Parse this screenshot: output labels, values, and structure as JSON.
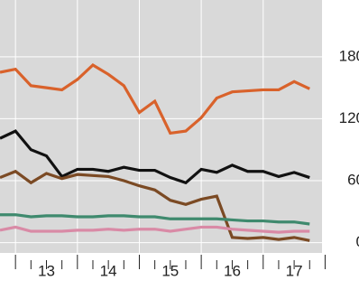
{
  "chart_data": {
    "type": "line",
    "x": [
      2012.75,
      2013,
      2013.25,
      2013.5,
      2013.75,
      2014,
      2014.25,
      2014.5,
      2014.75,
      2015,
      2015.25,
      2015.5,
      2015.75,
      2016,
      2016.25,
      2016.5,
      2016.75,
      2017,
      2017.25,
      2017.5,
      2017.75
    ],
    "series": [
      {
        "color": "#d9622b",
        "values": [
          165,
          168,
          152,
          150,
          148,
          158,
          172,
          163,
          152,
          126,
          137,
          106,
          108,
          121,
          140,
          146,
          147,
          148,
          148,
          156,
          149
        ]
      },
      {
        "color": "#111111",
        "values": [
          101,
          108,
          90,
          84,
          64,
          71,
          71,
          69,
          73,
          70,
          70,
          63,
          58,
          71,
          68,
          75,
          69,
          69,
          64,
          68,
          63
        ]
      },
      {
        "color": "#7b4a24",
        "values": [
          63,
          69,
          58,
          67,
          62,
          66,
          65,
          64,
          60,
          55,
          51,
          41,
          37,
          42,
          45,
          5,
          4,
          5,
          3,
          5,
          2
        ]
      },
      {
        "color": "#3f8a6e",
        "values": [
          27,
          27,
          25,
          26,
          26,
          25,
          25,
          26,
          26,
          25,
          25,
          23,
          23,
          23,
          23,
          22,
          21,
          21,
          20,
          20,
          18
        ]
      },
      {
        "color": "#d98aa6",
        "values": [
          12,
          15,
          11,
          11,
          11,
          12,
          12,
          13,
          12,
          13,
          13,
          11,
          13,
          15,
          15,
          13,
          12,
          11,
          10,
          11,
          11
        ]
      }
    ],
    "xlim": [
      2012.75,
      2017.95
    ],
    "xticks": [
      2013,
      2014,
      2015,
      2016,
      2017,
      2018
    ],
    "xlabels": [
      {
        "value": 2013.5,
        "label": "13"
      },
      {
        "value": 2014.5,
        "label": "14"
      },
      {
        "value": 2015.5,
        "label": "15"
      },
      {
        "value": 2016.5,
        "label": "16"
      },
      {
        "value": 2017.5,
        "label": "17"
      }
    ],
    "ylim": [
      -10,
      235
    ],
    "yticks": [
      0,
      60,
      120,
      180
    ],
    "grid": true
  }
}
